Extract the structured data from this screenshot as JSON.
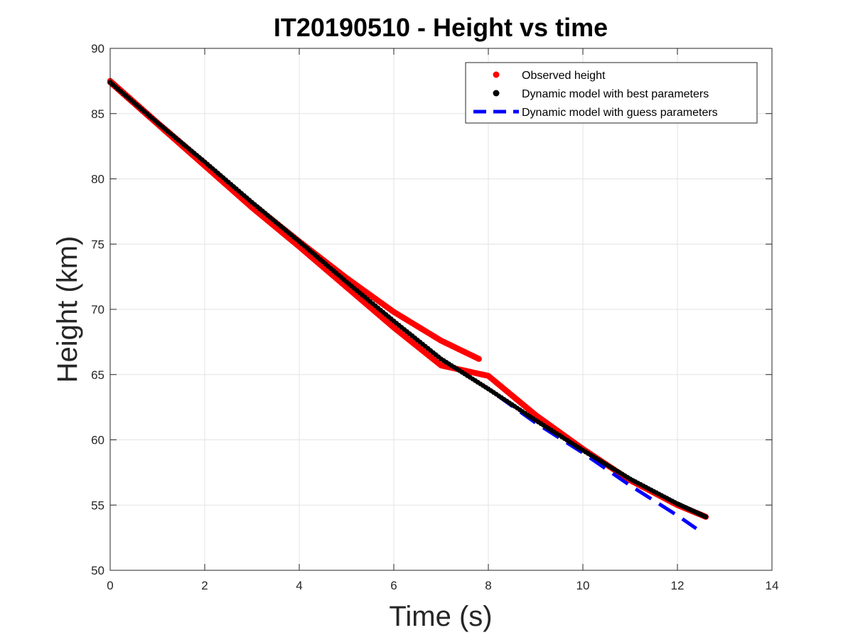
{
  "chart_data": {
    "type": "scatter",
    "title": "IT20190510 - Height vs time",
    "xlabel": "Time (s)",
    "ylabel": "Height (km)",
    "xlim": [
      0,
      14
    ],
    "ylim": [
      50,
      90
    ],
    "xticks": [
      0,
      2,
      4,
      6,
      8,
      10,
      12,
      14
    ],
    "yticks": [
      50,
      55,
      60,
      65,
      70,
      75,
      80,
      85,
      90
    ],
    "grid": true,
    "legend_position": "top-right",
    "series": [
      {
        "name": "Observed height",
        "style": "dots",
        "color": "#ff0000",
        "segments": [
          {
            "x": [
              0,
              1,
              2,
              3,
              4,
              5,
              6,
              7,
              7.8
            ],
            "y": [
              87.5,
              84.3,
              81.2,
              78.1,
              75.2,
              72.4,
              69.8,
              67.6,
              66.2
            ]
          },
          {
            "x": [
              0,
              1,
              2,
              3,
              4,
              5,
              6,
              7,
              8,
              9,
              10,
              11,
              12,
              12.6
            ],
            "y": [
              87.4,
              84.2,
              81.0,
              77.8,
              74.8,
              71.7,
              68.6,
              65.7,
              64.9,
              61.9,
              59.3,
              56.9,
              55.0,
              54.1
            ]
          }
        ]
      },
      {
        "name": "Dynamic model with best parameters",
        "style": "dots",
        "color": "#000000",
        "x": [
          0,
          1,
          2,
          3,
          4,
          5,
          6,
          7,
          8,
          9,
          10,
          11,
          12,
          12.6
        ],
        "y": [
          87.4,
          84.3,
          81.3,
          78.2,
          75.2,
          72.1,
          69.1,
          66.2,
          63.9,
          61.5,
          59.2,
          57.0,
          55.1,
          54.1
        ]
      },
      {
        "name": "Dynamic model with guess parameters",
        "style": "dashed",
        "color": "#0000ff",
        "x": [
          0,
          1,
          2,
          3,
          4,
          5,
          6,
          7,
          8,
          9,
          10,
          11,
          12,
          12.4
        ],
        "y": [
          87.4,
          84.3,
          81.3,
          78.2,
          75.2,
          72.1,
          69.1,
          66.2,
          63.9,
          61.3,
          59.0,
          56.5,
          54.2,
          53.2
        ]
      }
    ]
  }
}
